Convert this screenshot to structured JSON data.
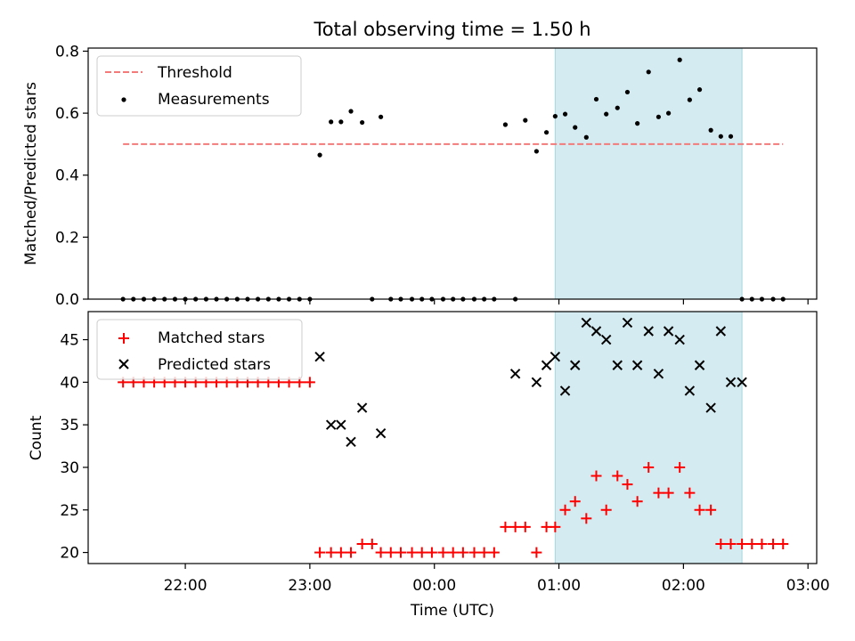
{
  "chart_data": [
    {
      "type": "scatter",
      "title": "Total observing time = 1.50 h",
      "xlabel": "",
      "ylabel": "Matched/Predicted stars",
      "ylim": [
        0.0,
        0.81
      ],
      "yticks": [
        0.0,
        0.2,
        0.4,
        0.6,
        0.8
      ],
      "ytick_labels": [
        "0.0",
        "0.2",
        "0.4",
        "0.6",
        "0.8"
      ],
      "x_unit": "hours relative to 00:00 UTC",
      "xlim": [
        -2.78,
        3.07
      ],
      "shaded_span": {
        "x0": 0.97,
        "x1": 2.47,
        "color": "#d4ebf1"
      },
      "legend": {
        "position": "upper-left",
        "entries": [
          "Threshold",
          "Measurements"
        ]
      },
      "threshold": {
        "name": "Threshold",
        "y": 0.5,
        "x": [
          -2.5,
          2.8
        ],
        "color": "#f47a7a"
      },
      "measurements": {
        "name": "Measurements",
        "color": "#000000",
        "x": [
          -2.5,
          -2.417,
          -2.333,
          -2.25,
          -2.167,
          -2.083,
          -2.0,
          -1.917,
          -1.833,
          -1.75,
          -1.667,
          -1.583,
          -1.5,
          -1.417,
          -1.333,
          -1.25,
          -1.167,
          -1.083,
          -1.0,
          -0.92,
          -0.83,
          -0.75,
          -0.67,
          -0.58,
          -0.5,
          -0.43,
          -0.35,
          -0.27,
          -0.18,
          -0.1,
          -0.02,
          0.07,
          0.15,
          0.23,
          0.32,
          0.4,
          0.48,
          0.57,
          0.65,
          0.73,
          0.82,
          0.9,
          0.97,
          1.05,
          1.13,
          1.22,
          1.3,
          1.38,
          1.47,
          1.55,
          1.63,
          1.72,
          1.8,
          1.88,
          1.97,
          2.05,
          2.13,
          2.22,
          2.3,
          2.38,
          2.47,
          2.55,
          2.63,
          2.72,
          2.8
        ],
        "y": [
          0,
          0,
          0,
          0,
          0,
          0,
          0,
          0,
          0,
          0,
          0,
          0,
          0,
          0,
          0,
          0,
          0,
          0,
          0,
          0.465,
          0.572,
          0.572,
          0.606,
          0.57,
          0,
          0.588,
          0,
          0,
          0,
          0,
          0,
          0,
          0,
          0,
          0,
          0,
          0,
          0.563,
          0,
          0.577,
          0.477,
          0.538,
          0.59,
          0.597,
          0.554,
          0.522,
          0.645,
          0.597,
          0.617,
          0.668,
          0.567,
          0.733,
          0.588,
          0.6,
          0.772,
          0.643,
          0.676,
          0.545,
          0.525,
          0.525,
          0,
          0,
          0,
          0,
          0
        ]
      }
    },
    {
      "type": "scatter",
      "title": "",
      "xlabel": "Time (UTC)",
      "ylabel": "Count",
      "ylim": [
        18.7,
        48.3
      ],
      "yticks": [
        20,
        25,
        30,
        35,
        40,
        45
      ],
      "ytick_labels": [
        "20",
        "25",
        "30",
        "35",
        "40",
        "45"
      ],
      "x_unit": "hours relative to 00:00 UTC",
      "xlim": [
        -2.78,
        3.07
      ],
      "xticks": [
        -2,
        -1,
        0,
        1,
        2,
        3
      ],
      "xtick_labels": [
        "22:00",
        "23:00",
        "00:00",
        "01:00",
        "02:00",
        "03:00"
      ],
      "shaded_span": {
        "x0": 0.97,
        "x1": 2.47,
        "color": "#d4ebf1"
      },
      "legend": {
        "position": "upper-left",
        "entries": [
          "Matched stars",
          "Predicted stars"
        ]
      },
      "matched": {
        "name": "Matched stars",
        "color": "#ff0000",
        "x": [
          -2.5,
          -2.417,
          -2.333,
          -2.25,
          -2.167,
          -2.083,
          -2.0,
          -1.917,
          -1.833,
          -1.75,
          -1.667,
          -1.583,
          -1.5,
          -1.417,
          -1.333,
          -1.25,
          -1.167,
          -1.083,
          -1.0,
          -0.92,
          -0.83,
          -0.75,
          -0.67,
          -0.58,
          -0.5,
          -0.43,
          -0.35,
          -0.27,
          -0.18,
          -0.1,
          -0.02,
          0.07,
          0.15,
          0.23,
          0.32,
          0.4,
          0.48,
          0.57,
          0.65,
          0.73,
          0.82,
          0.9,
          0.97,
          1.05,
          1.13,
          1.22,
          1.3,
          1.38,
          1.47,
          1.55,
          1.63,
          1.72,
          1.8,
          1.88,
          1.97,
          2.05,
          2.13,
          2.22,
          2.3,
          2.38,
          2.47,
          2.55,
          2.63,
          2.72,
          2.8
        ],
        "y": [
          40,
          40,
          40,
          40,
          40,
          40,
          40,
          40,
          40,
          40,
          40,
          40,
          40,
          40,
          40,
          40,
          40,
          40,
          40,
          20,
          20,
          20,
          20,
          21,
          21,
          20,
          20,
          20,
          20,
          20,
          20,
          20,
          20,
          20,
          20,
          20,
          20,
          23,
          23,
          23,
          20,
          23,
          23,
          25,
          26,
          24,
          29,
          25,
          29,
          28,
          26,
          30,
          27,
          27,
          30,
          27,
          25,
          25,
          21,
          21,
          21,
          21,
          21,
          21,
          21
        ]
      },
      "predicted": {
        "name": "Predicted stars",
        "color": "#000000",
        "x": [
          -0.92,
          -0.83,
          -0.75,
          -0.67,
          -0.58,
          -0.43,
          0.65,
          0.82,
          0.9,
          0.97,
          1.05,
          1.13,
          1.22,
          1.3,
          1.38,
          1.47,
          1.55,
          1.63,
          1.72,
          1.8,
          1.88,
          1.97,
          2.05,
          2.13,
          2.22,
          2.3,
          2.38,
          2.47
        ],
        "y": [
          43,
          35,
          35,
          33,
          37,
          34,
          41,
          40,
          42,
          43,
          39,
          42,
          47,
          46,
          45,
          42,
          47,
          42,
          46,
          41,
          46,
          45,
          39,
          42,
          37,
          46,
          40,
          40
        ]
      }
    }
  ]
}
